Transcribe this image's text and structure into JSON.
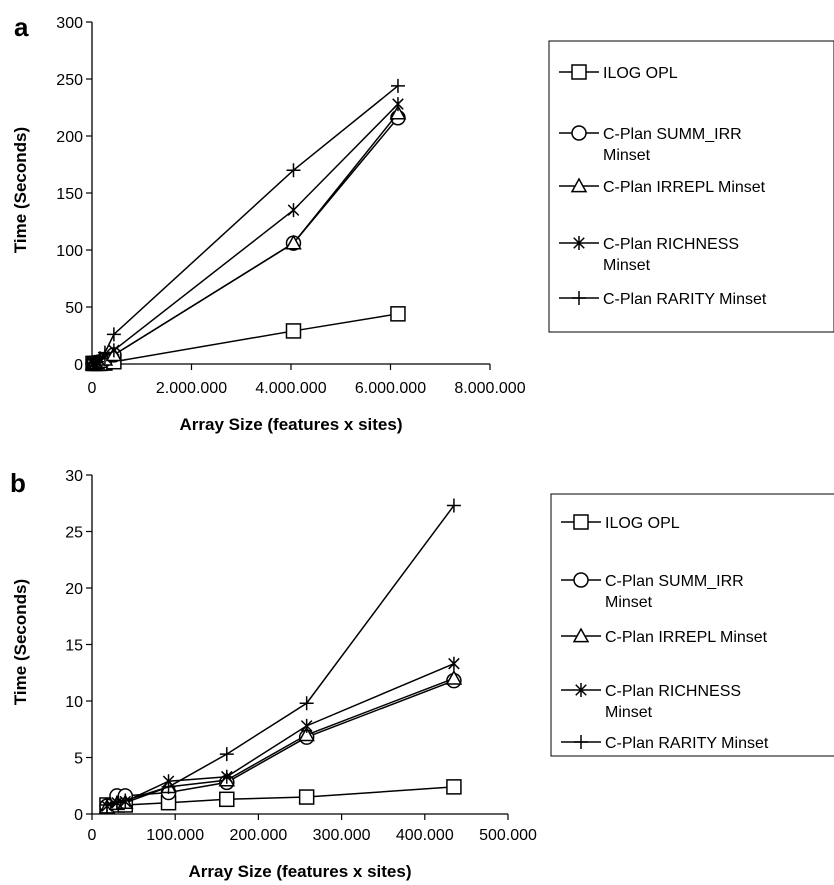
{
  "chart_data": [
    {
      "panel": "a",
      "type": "line",
      "xlabel": "Array Size (features x sites)",
      "ylabel": "Time (Seconds)",
      "xlim": [
        0,
        8000000
      ],
      "ylim": [
        0,
        300
      ],
      "xticks": [
        0,
        2000000,
        4000000,
        6000000,
        8000000
      ],
      "xtick_labels": [
        "0",
        "2.000.000",
        "4.000.000",
        "6.000.000",
        "8.000.000"
      ],
      "yticks": [
        0,
        50,
        100,
        150,
        200,
        250,
        300
      ],
      "ytick_labels": [
        "0",
        "50",
        "100",
        "150",
        "200",
        "250",
        "300"
      ],
      "legend_placement": "right",
      "series": [
        {
          "name": "ILOG OPL",
          "marker": "square",
          "x": [
            20000,
            50000,
            100000,
            160000,
            260000,
            440000,
            4050000,
            6150000
          ],
          "y": [
            0.5,
            0.5,
            0.5,
            0.5,
            0.8,
            2,
            29,
            44
          ]
        },
        {
          "name": "C-Plan SUMM_IRR Minset",
          "marker": "circle",
          "x": [
            20000,
            50000,
            100000,
            160000,
            260000,
            440000,
            4050000,
            6150000
          ],
          "y": [
            0.5,
            1,
            1,
            2,
            4,
            8,
            106,
            216
          ]
        },
        {
          "name": "C-Plan IRREPL Minset",
          "marker": "triangle",
          "x": [
            20000,
            50000,
            100000,
            160000,
            260000,
            440000,
            4050000,
            6150000
          ],
          "y": [
            0.5,
            1,
            1,
            2,
            4,
            8,
            106,
            220
          ]
        },
        {
          "name": "C-Plan RICHNESS Minset",
          "marker": "star",
          "x": [
            20000,
            50000,
            100000,
            160000,
            260000,
            440000,
            4050000,
            6150000
          ],
          "y": [
            0.5,
            1,
            2,
            3,
            6,
            12,
            135,
            228
          ]
        },
        {
          "name": "C-Plan RARITY Minset",
          "marker": "plus",
          "x": [
            20000,
            50000,
            100000,
            160000,
            260000,
            440000,
            4050000,
            6150000
          ],
          "y": [
            0.5,
            1,
            2,
            5,
            10,
            26,
            170,
            244
          ]
        }
      ]
    },
    {
      "panel": "b",
      "type": "line",
      "xlabel": "Array Size (features x sites)",
      "ylabel": "Time (Seconds)",
      "xlim": [
        0,
        500000
      ],
      "ylim": [
        0,
        30
      ],
      "xticks": [
        0,
        100000,
        200000,
        300000,
        400000,
        500000
      ],
      "xtick_labels": [
        "0",
        "100.000",
        "200.000",
        "300.000",
        "400.000",
        "500.000"
      ],
      "yticks": [
        0,
        5,
        10,
        15,
        20,
        25,
        30
      ],
      "ytick_labels": [
        "0",
        "5",
        "10",
        "15",
        "20",
        "25",
        "30"
      ],
      "legend_placement": "right",
      "series": [
        {
          "name": "ILOG OPL",
          "marker": "square",
          "x": [
            18000,
            30000,
            40000,
            92000,
            162000,
            258000,
            435000
          ],
          "y": [
            0.8,
            0.8,
            0.8,
            1.0,
            1.3,
            1.5,
            2.4
          ]
        },
        {
          "name": "C-Plan SUMM_IRR Minset",
          "marker": "circle",
          "x": [
            18000,
            30000,
            40000,
            92000,
            162000,
            258000,
            435000
          ],
          "y": [
            0.7,
            1.6,
            1.6,
            1.9,
            2.8,
            6.8,
            11.8
          ]
        },
        {
          "name": "C-Plan IRREPL Minset",
          "marker": "triangle",
          "x": [
            18000,
            30000,
            40000,
            92000,
            162000,
            258000,
            435000
          ],
          "y": [
            0.6,
            0.9,
            1.0,
            2.4,
            3.0,
            7.0,
            12.0
          ]
        },
        {
          "name": "C-Plan RICHNESS Minset",
          "marker": "star",
          "x": [
            18000,
            30000,
            40000,
            92000,
            162000,
            258000,
            435000
          ],
          "y": [
            0.7,
            1.0,
            1.1,
            2.9,
            3.3,
            7.8,
            13.3
          ]
        },
        {
          "name": "C-Plan RARITY Minset",
          "marker": "plus",
          "x": [
            18000,
            30000,
            40000,
            92000,
            162000,
            258000,
            435000
          ],
          "y": [
            0.8,
            1.0,
            1.2,
            2.4,
            5.3,
            9.8,
            27.3
          ]
        }
      ]
    }
  ],
  "legend_lines": {
    "ILOG OPL": [
      "ILOG OPL"
    ],
    "C-Plan SUMM_IRR Minset": [
      "C-Plan SUMM_IRR",
      "Minset"
    ],
    "C-Plan IRREPL Minset": [
      "C-Plan IRREPL Minset"
    ],
    "C-Plan RICHNESS Minset": [
      "C-Plan RICHNESS",
      "Minset"
    ],
    "C-Plan RARITY Minset": [
      "C-Plan RARITY Minset"
    ]
  }
}
